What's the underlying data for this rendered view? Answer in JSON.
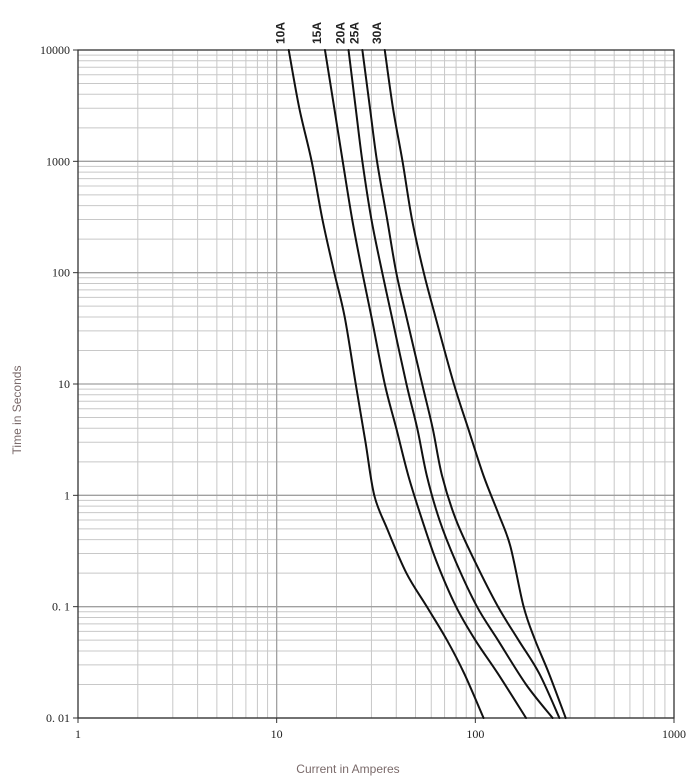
{
  "chart_data": {
    "type": "line",
    "xscale": "log",
    "yscale": "log",
    "xlim": [
      1,
      1000
    ],
    "ylim": [
      0.01,
      10000
    ],
    "xlabel": "Current in Amperes",
    "ylabel": "Time in Seconds",
    "x_ticks": [
      "1",
      "10",
      "100",
      "1000"
    ],
    "y_ticks": [
      "0. 01",
      "0. 1",
      "1",
      "10",
      "100",
      "1000",
      "10000"
    ],
    "grid": true,
    "legend": "labels above plot",
    "line_color": "#111111",
    "grid_color": "#c8c8c8",
    "series": [
      {
        "name": "10A",
        "points": [
          [
            11.5,
            10000
          ],
          [
            13,
            3000
          ],
          [
            15,
            1000
          ],
          [
            17,
            300
          ],
          [
            19.5,
            100
          ],
          [
            22,
            40
          ],
          [
            25,
            10
          ],
          [
            28,
            3
          ],
          [
            31,
            1
          ],
          [
            36,
            0.5
          ],
          [
            45,
            0.2
          ],
          [
            57,
            0.1
          ],
          [
            72,
            0.05
          ],
          [
            88,
            0.025
          ],
          [
            110,
            0.01
          ]
        ]
      },
      {
        "name": "15A",
        "points": [
          [
            17.5,
            10000
          ],
          [
            19.5,
            3000
          ],
          [
            21.5,
            1000
          ],
          [
            24,
            300
          ],
          [
            27,
            100
          ],
          [
            30,
            40
          ],
          [
            35,
            10
          ],
          [
            40,
            4
          ],
          [
            46,
            1.5
          ],
          [
            54,
            0.6
          ],
          [
            64,
            0.25
          ],
          [
            80,
            0.1
          ],
          [
            100,
            0.05
          ],
          [
            130,
            0.025
          ],
          [
            180,
            0.01
          ]
        ]
      },
      {
        "name": "20A",
        "points": [
          [
            23,
            10000
          ],
          [
            25,
            3000
          ],
          [
            27,
            1000
          ],
          [
            30,
            300
          ],
          [
            34,
            100
          ],
          [
            38,
            40
          ],
          [
            45,
            10
          ],
          [
            51,
            4
          ],
          [
            57,
            1.5
          ],
          [
            66,
            0.6
          ],
          [
            80,
            0.25
          ],
          [
            102,
            0.1
          ],
          [
            130,
            0.05
          ],
          [
            180,
            0.02
          ],
          [
            245,
            0.01
          ]
        ]
      },
      {
        "name": "25A",
        "points": [
          [
            27,
            10000
          ],
          [
            29.5,
            3000
          ],
          [
            32,
            1000
          ],
          [
            36,
            300
          ],
          [
            40,
            100
          ],
          [
            45,
            40
          ],
          [
            54,
            10
          ],
          [
            61,
            4
          ],
          [
            68,
            1.5
          ],
          [
            80,
            0.6
          ],
          [
            100,
            0.25
          ],
          [
            130,
            0.1
          ],
          [
            165,
            0.05
          ],
          [
            210,
            0.025
          ],
          [
            265,
            0.01
          ]
        ]
      },
      {
        "name": "30A",
        "points": [
          [
            35,
            10000
          ],
          [
            38.5,
            3000
          ],
          [
            43,
            1000
          ],
          [
            48,
            300
          ],
          [
            55,
            100
          ],
          [
            63,
            40
          ],
          [
            78,
            10
          ],
          [
            92,
            4
          ],
          [
            110,
            1.5
          ],
          [
            130,
            0.7
          ],
          [
            150,
            0.35
          ],
          [
            175,
            0.1
          ],
          [
            200,
            0.05
          ],
          [
            235,
            0.025
          ],
          [
            285,
            0.01
          ]
        ]
      }
    ]
  }
}
